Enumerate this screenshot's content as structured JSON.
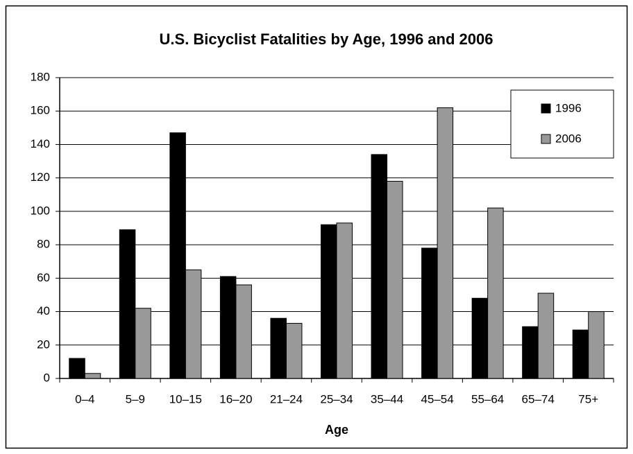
{
  "chart_data": {
    "type": "bar",
    "title": "U.S. Bicyclist Fatalities by Age, 1996 and 2006",
    "x_label": "Age",
    "categories": [
      "0–4",
      "5–9",
      "10–15",
      "16–20",
      "21–24",
      "25–34",
      "35–44",
      "45–54",
      "55–64",
      "65–74",
      "75+"
    ],
    "series": [
      {
        "name": "1996",
        "color": "#000000",
        "values": [
          12,
          89,
          147,
          61,
          36,
          92,
          134,
          78,
          48,
          31,
          29
        ]
      },
      {
        "name": "2006",
        "color": "#999999",
        "values": [
          3,
          42,
          65,
          56,
          33,
          93,
          118,
          162,
          102,
          51,
          40
        ]
      }
    ],
    "ylim": [
      0,
      180
    ],
    "yticks": [
      0,
      20,
      40,
      60,
      80,
      100,
      120,
      140,
      160,
      180
    ],
    "grid": true,
    "legend": "top-right"
  }
}
